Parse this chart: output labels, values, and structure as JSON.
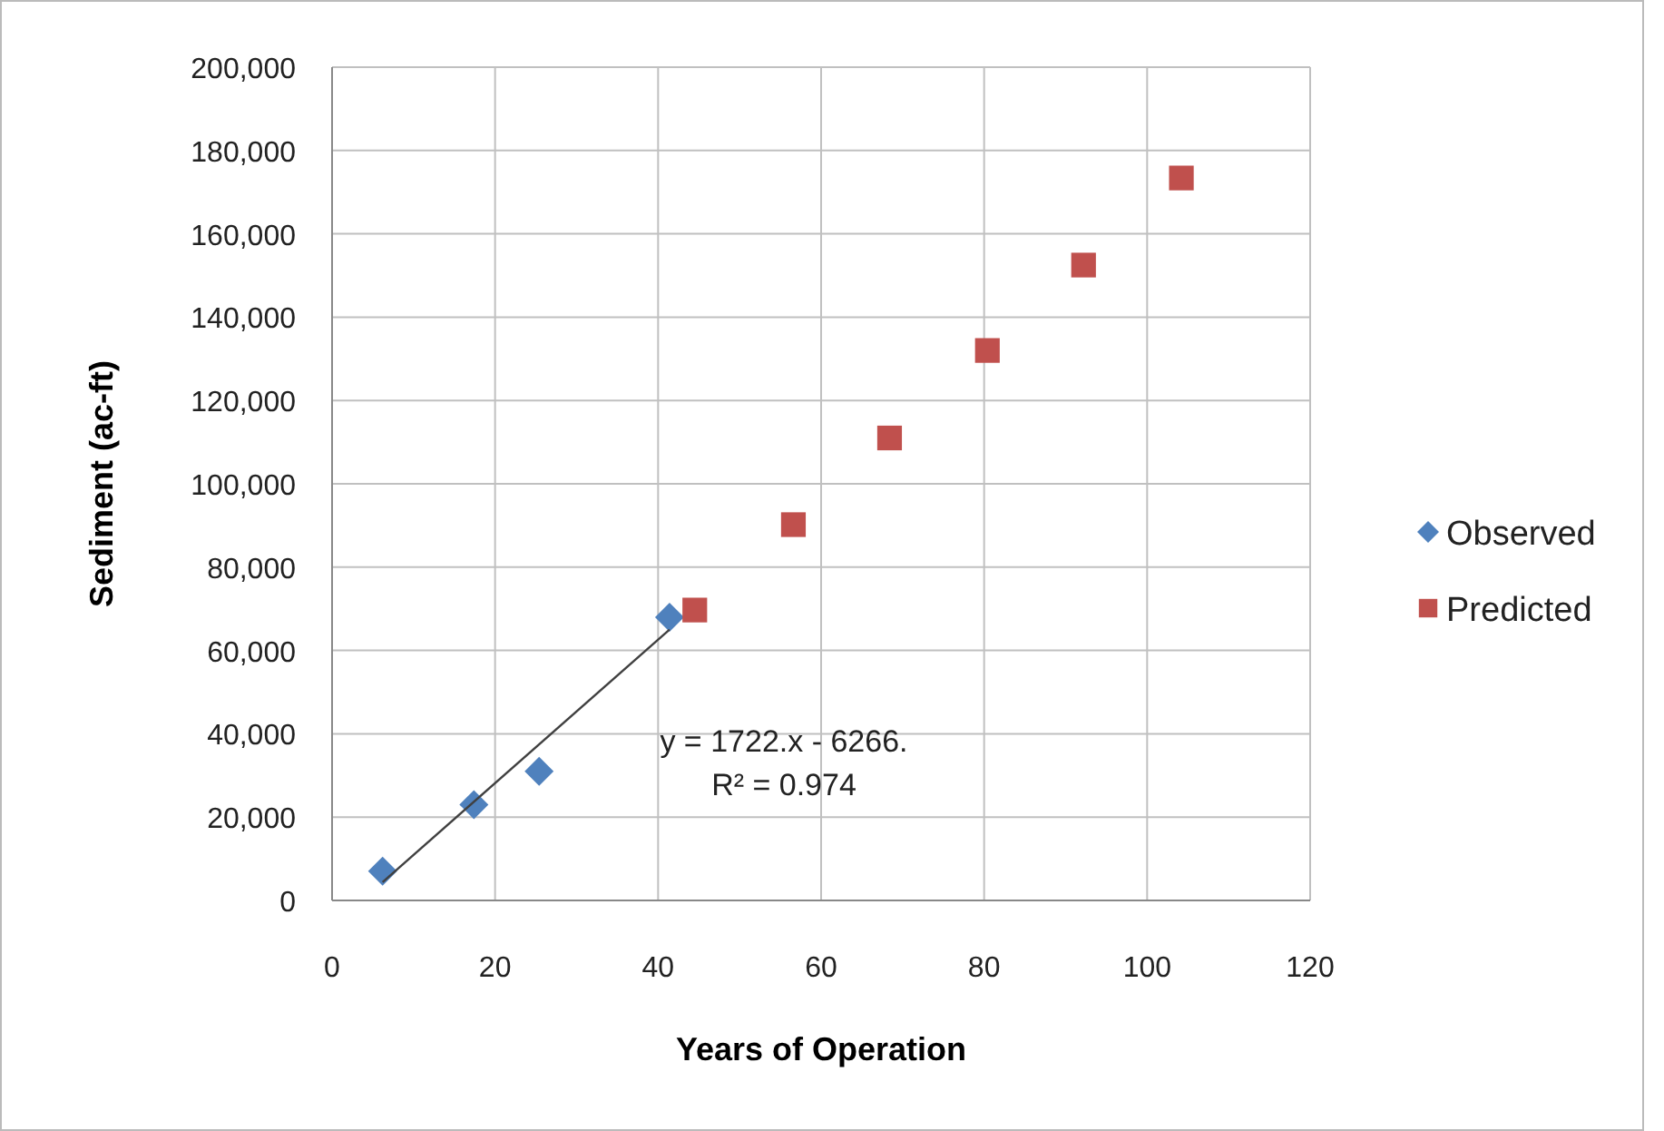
{
  "chart_data": {
    "type": "scatter",
    "xlabel": "Years of Operation",
    "ylabel": "Sediment (ac-ft)",
    "xlim": [
      0,
      120
    ],
    "xticks": [
      0,
      20,
      40,
      60,
      80,
      100,
      120
    ],
    "ylim": [
      0,
      200000
    ],
    "yticks": [
      {
        "value": 0,
        "label": "0"
      },
      {
        "value": 20000,
        "label": "20,000"
      },
      {
        "value": 40000,
        "label": "40,000"
      },
      {
        "value": 60000,
        "label": "60,000"
      },
      {
        "value": 80000,
        "label": "80,000"
      },
      {
        "value": 100000,
        "label": "100,000"
      },
      {
        "value": 120000,
        "label": "120,000"
      },
      {
        "value": 140000,
        "label": "140,000"
      },
      {
        "value": 160000,
        "label": "160,000"
      },
      {
        "value": 180000,
        "label": "180,000"
      },
      {
        "value": 200000,
        "label": "200,000"
      }
    ],
    "grid": true,
    "legend": "right",
    "series": [
      {
        "name": "Observed",
        "color": "#4f81bd",
        "marker": "diamond",
        "x": [
          6.2,
          17.4,
          25.4,
          41.4
        ],
        "values": [
          7000,
          23000,
          31000,
          68000
        ]
      },
      {
        "name": "Predicted",
        "color": "#c0504d",
        "marker": "square",
        "x": [
          44.5,
          56.6,
          68.4,
          80.4,
          92.2,
          104.2
        ],
        "values": [
          69700,
          90200,
          111000,
          132000,
          152500,
          173400
        ]
      },
      {
        "type": "line",
        "color": "#404040",
        "marker": "none",
        "x": [
          6.2,
          41.4
        ],
        "values": [
          4400,
          65000
        ]
      }
    ],
    "annotations": [
      "y = 1722.x - 6266.",
      "R² = 0.974"
    ]
  }
}
